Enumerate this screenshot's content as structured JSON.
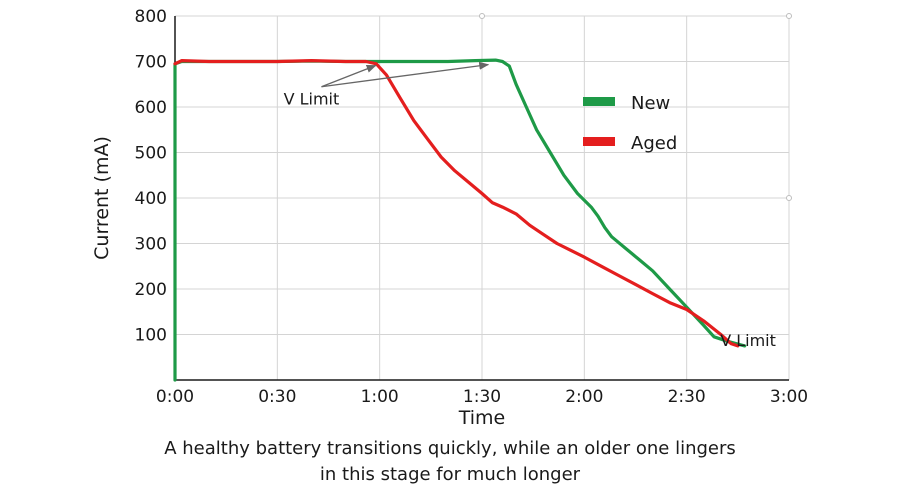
{
  "chart_data": {
    "type": "line",
    "title": "",
    "xlabel": "Time",
    "ylabel": "Current (mA)",
    "xlim": [
      0,
      180
    ],
    "ylim": [
      0,
      800
    ],
    "x_ticks": [
      0,
      30,
      60,
      90,
      120,
      150,
      180
    ],
    "x_tick_labels": [
      "0:00",
      "0:30",
      "1:00",
      "1:30",
      "2:00",
      "2:30",
      "3:00"
    ],
    "y_ticks": [
      100,
      200,
      300,
      400,
      500,
      600,
      700,
      800
    ],
    "y_tick_labels": [
      "100",
      "200",
      "300",
      "400",
      "500",
      "600",
      "700",
      "800"
    ],
    "grid": true,
    "legend": "right",
    "series": [
      {
        "name": "New",
        "color": "#1e9a47",
        "points": [
          [
            0,
            0
          ],
          [
            0,
            695
          ],
          [
            2,
            700
          ],
          [
            10,
            700
          ],
          [
            20,
            700
          ],
          [
            30,
            700
          ],
          [
            40,
            701
          ],
          [
            50,
            700
          ],
          [
            60,
            700
          ],
          [
            70,
            700
          ],
          [
            80,
            700
          ],
          [
            88,
            702
          ],
          [
            94,
            703
          ],
          [
            96,
            700
          ],
          [
            98,
            690
          ],
          [
            100,
            650
          ],
          [
            103,
            600
          ],
          [
            106,
            550
          ],
          [
            110,
            500
          ],
          [
            114,
            450
          ],
          [
            118,
            410
          ],
          [
            122,
            380
          ],
          [
            124,
            360
          ],
          [
            126,
            335
          ],
          [
            128,
            315
          ],
          [
            132,
            290
          ],
          [
            136,
            265
          ],
          [
            140,
            240
          ],
          [
            145,
            200
          ],
          [
            150,
            160
          ],
          [
            155,
            120
          ],
          [
            158,
            95
          ],
          [
            162,
            85
          ],
          [
            167,
            75
          ]
        ]
      },
      {
        "name": "Aged",
        "color": "#e41e1e",
        "points": [
          [
            0,
            695
          ],
          [
            2,
            702
          ],
          [
            10,
            700
          ],
          [
            20,
            700
          ],
          [
            30,
            700
          ],
          [
            40,
            702
          ],
          [
            50,
            700
          ],
          [
            56,
            700
          ],
          [
            59,
            695
          ],
          [
            62,
            670
          ],
          [
            66,
            620
          ],
          [
            70,
            570
          ],
          [
            74,
            530
          ],
          [
            78,
            490
          ],
          [
            82,
            460
          ],
          [
            86,
            435
          ],
          [
            90,
            410
          ],
          [
            93,
            390
          ],
          [
            96,
            380
          ],
          [
            100,
            365
          ],
          [
            104,
            340
          ],
          [
            108,
            320
          ],
          [
            112,
            300
          ],
          [
            116,
            285
          ],
          [
            120,
            270
          ],
          [
            125,
            250
          ],
          [
            130,
            230
          ],
          [
            135,
            210
          ],
          [
            140,
            190
          ],
          [
            145,
            170
          ],
          [
            150,
            155
          ],
          [
            155,
            130
          ],
          [
            160,
            100
          ],
          [
            163,
            80
          ],
          [
            165,
            75
          ]
        ]
      }
    ],
    "annotations": [
      {
        "text": "V Limit",
        "x": 40,
        "y": 605,
        "arrows_to": [
          [
            60,
            700
          ],
          [
            93,
            702
          ]
        ]
      },
      {
        "text": "V Limit",
        "x": 168,
        "y": 75,
        "arrows_to": []
      }
    ]
  },
  "caption": {
    "line1": "A healthy battery transitions quickly, while an older one lingers",
    "line2": "in this stage for much longer"
  }
}
